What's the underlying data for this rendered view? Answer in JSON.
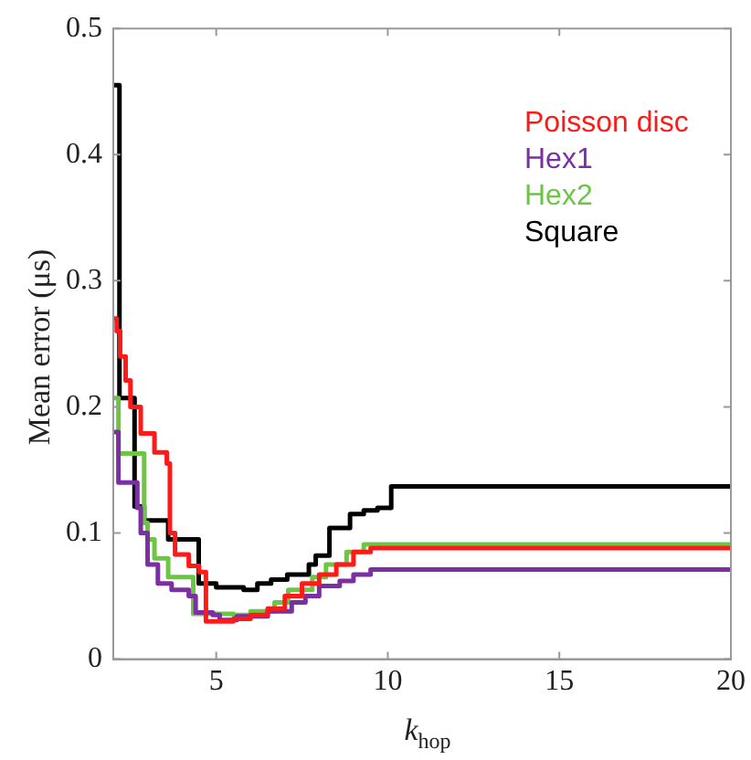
{
  "chart_data": {
    "type": "step",
    "xlabel": "k$_{hop}$",
    "ylabel": "Mean error (μs)",
    "xlim": [
      2,
      20
    ],
    "xticks": [
      5,
      10,
      15,
      20
    ],
    "ylim": [
      0,
      0.5
    ],
    "yticks": [
      0,
      0.1,
      0.2,
      0.3,
      0.4,
      0.5
    ],
    "grid": false,
    "legend": "top right",
    "series": [
      {
        "name": "Poisson disc",
        "color": "#ff1a1a",
        "x": [
          2,
          2.1,
          2.2,
          2.36,
          2.5,
          2.8,
          3.2,
          3.56,
          3.65,
          3.8,
          4.2,
          4.5,
          4.7,
          5.5,
          6.0,
          6.5,
          7.0,
          7.5,
          8.0,
          8.5,
          9.0,
          9.5,
          20
        ],
        "values": [
          0.27,
          0.26,
          0.24,
          0.221,
          0.2,
          0.179,
          0.164,
          0.155,
          0.1,
          0.083,
          0.074,
          0.069,
          0.03,
          0.032,
          0.035,
          0.04,
          0.05,
          0.06,
          0.067,
          0.075,
          0.085,
          0.088,
          0.088
        ]
      },
      {
        "name": "Hex1",
        "color": "#7b2fa0",
        "x": [
          2,
          2.15,
          2.7,
          2.8,
          3.0,
          3.3,
          3.7,
          4.2,
          4.4,
          4.9,
          5.1,
          5.6,
          6.5,
          7.2,
          7.6,
          8.0,
          8.6,
          9.0,
          9.5,
          20
        ],
        "values": [
          0.18,
          0.14,
          0.12,
          0.1,
          0.075,
          0.06,
          0.055,
          0.05,
          0.037,
          0.035,
          0.031,
          0.034,
          0.038,
          0.045,
          0.05,
          0.058,
          0.062,
          0.067,
          0.071,
          0.071
        ]
      },
      {
        "name": "Hex2",
        "color": "#6cc644",
        "x": [
          2,
          2.15,
          2.9,
          3.0,
          3.2,
          3.6,
          4.33,
          5.5,
          6.0,
          6.7,
          7.1,
          7.8,
          8.2,
          8.8,
          9.3,
          20
        ],
        "values": [
          0.207,
          0.163,
          0.108,
          0.095,
          0.08,
          0.065,
          0.036,
          0.035,
          0.038,
          0.045,
          0.055,
          0.065,
          0.075,
          0.085,
          0.091,
          0.091
        ]
      },
      {
        "name": "Square",
        "color": "#000000",
        "x": [
          2,
          2.18,
          2.62,
          2.9,
          3.6,
          4.49,
          5.0,
          5.8,
          6.2,
          6.6,
          7.07,
          7.7,
          7.9,
          8.3,
          8.9,
          9.3,
          9.7,
          10.1,
          20
        ],
        "values": [
          0.455,
          0.207,
          0.121,
          0.11,
          0.095,
          0.06,
          0.057,
          0.055,
          0.06,
          0.063,
          0.067,
          0.075,
          0.082,
          0.104,
          0.115,
          0.118,
          0.12,
          0.137,
          0.137
        ]
      }
    ]
  }
}
